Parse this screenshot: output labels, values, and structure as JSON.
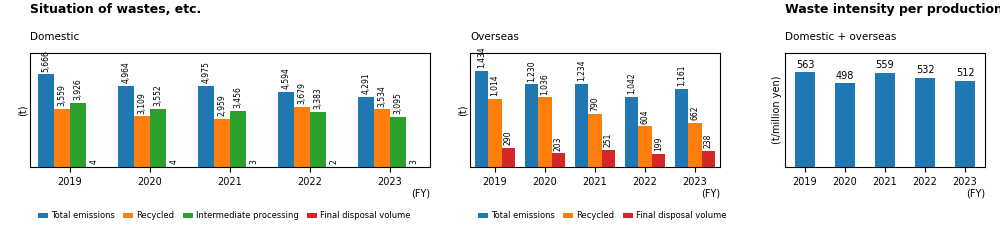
{
  "chart_data": [
    {
      "type": "bar",
      "title": "Situation of wastes, etc.",
      "subtitle": "Domestic",
      "xlabel": "(FY)",
      "ylabel": "(t)",
      "categories": [
        "2019",
        "2020",
        "2021",
        "2022",
        "2023"
      ],
      "series": [
        {
          "name": "Total emissions",
          "values": [
            5666,
            4964,
            4975,
            4594,
            4291
          ],
          "value_labels": [
            "5,666",
            "4,964",
            "4,975",
            "4,594",
            "4,291"
          ]
        },
        {
          "name": "Recycled",
          "values": [
            3559,
            3109,
            2959,
            3679,
            3534
          ],
          "value_labels": [
            "3,559",
            "3,109",
            "2,959",
            "3,679",
            "3,534"
          ]
        },
        {
          "name": "Intermediate processing",
          "values": [
            3926,
            3552,
            3456,
            3383,
            3095
          ],
          "value_labels": [
            "3,926",
            "3,552",
            "3,456",
            "3,383",
            "3,095"
          ]
        },
        {
          "name": "Final disposal volume",
          "values": [
            4,
            4,
            3,
            2,
            3
          ]
        }
      ],
      "ylim": [
        0,
        7000
      ],
      "tick_labels": "x",
      "data_labels": true,
      "grid": false,
      "legend": "lower left"
    },
    {
      "type": "bar",
      "subtitle": "Overseas",
      "xlabel": "(FY)",
      "ylabel": "(t)",
      "categories": [
        "2019",
        "2020",
        "2021",
        "2022",
        "2023"
      ],
      "series": [
        {
          "name": "Total emissions",
          "values": [
            1434,
            1230,
            1234,
            1042,
            1161
          ],
          "value_labels": [
            "1,434",
            "1,230",
            "1,234",
            "1,042",
            "1,161"
          ]
        },
        {
          "name": "Recycled",
          "values": [
            1014,
            1036,
            790,
            604,
            662
          ],
          "value_labels": [
            "1,014",
            "1,036",
            "790",
            "604",
            "662"
          ]
        },
        {
          "name": "Final disposal volume",
          "values": [
            290,
            203,
            251,
            199,
            238
          ]
        }
      ],
      "ylim": [
        0,
        1700
      ],
      "tick_labels": "x",
      "data_labels": true,
      "grid": false,
      "legend": "lower left"
    },
    {
      "type": "bar",
      "title": "Waste intensity per production",
      "subtitle": "Domestic + overseas",
      "xlabel": "(FY)",
      "ylabel": "(t/million yen)",
      "categories": [
        "2019",
        "2020",
        "2021",
        "2022",
        "2023"
      ],
      "values": [
        563,
        498,
        559,
        532,
        512
      ],
      "ylim": [
        0,
        680
      ],
      "tick_labels": "x",
      "data_labels": true,
      "grid": false
    }
  ]
}
